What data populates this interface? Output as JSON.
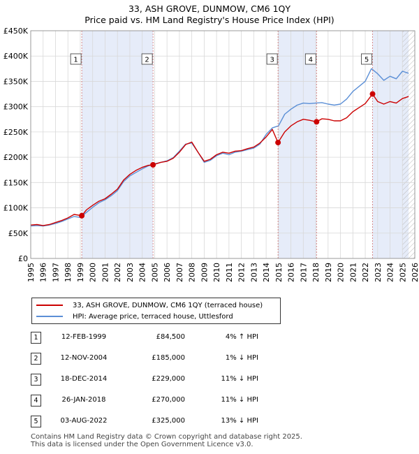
{
  "header": {
    "title": "33, ASH GROVE, DUNMOW, CM6 1QY",
    "subtitle": "Price paid vs. HM Land Registry's House Price Index (HPI)"
  },
  "legend": {
    "property_label": "33, ASH GROVE, DUNMOW, CM6 1QY (terraced house)",
    "hpi_label": "HPI: Average price, terraced house, Uttlesford",
    "property_color": "#cc0000",
    "hpi_color": "#5b8fd6"
  },
  "transactions": [
    {
      "num": "1",
      "date": "12-FEB-1999",
      "price": "£84,500",
      "hpi": "4% ↑ HPI"
    },
    {
      "num": "2",
      "date": "12-NOV-2004",
      "price": "£185,000",
      "hpi": "1% ↓ HPI"
    },
    {
      "num": "3",
      "date": "18-DEC-2014",
      "price": "£229,000",
      "hpi": "11% ↓ HPI"
    },
    {
      "num": "4",
      "date": "26-JAN-2018",
      "price": "£270,000",
      "hpi": "11% ↓ HPI"
    },
    {
      "num": "5",
      "date": "03-AUG-2022",
      "price": "£325,000",
      "hpi": "13% ↓ HPI"
    }
  ],
  "footer": {
    "line1": "Contains HM Land Registry data © Crown copyright and database right 2025.",
    "line2": "This data is licensed under the Open Government Licence v3.0."
  },
  "chart_data": {
    "type": "line",
    "title": "33, ASH GROVE, DUNMOW, CM6 1QY",
    "subtitle": "Price paid vs. HM Land Registry's House Price Index (HPI)",
    "xlim": [
      1995,
      2026
    ],
    "ylim": [
      0,
      450000
    ],
    "x_ticks": [
      1995,
      1996,
      1997,
      1998,
      1999,
      2000,
      2001,
      2002,
      2003,
      2004,
      2005,
      2006,
      2007,
      2008,
      2009,
      2010,
      2011,
      2012,
      2013,
      2014,
      2015,
      2016,
      2017,
      2018,
      2019,
      2020,
      2021,
      2022,
      2023,
      2024,
      2025,
      2026
    ],
    "y_ticks": [
      0,
      50000,
      100000,
      150000,
      200000,
      250000,
      300000,
      350000,
      400000,
      450000
    ],
    "y_tick_labels": [
      "£0",
      "£50K",
      "£100K",
      "£150K",
      "£200K",
      "£250K",
      "£300K",
      "£350K",
      "£400K",
      "£450K"
    ],
    "grid": true,
    "shaded_periods": [
      [
        1999.12,
        2004.87
      ],
      [
        2014.96,
        2018.07
      ],
      [
        2022.59,
        2025.5
      ]
    ],
    "hatched_from": 2025.0,
    "series": [
      {
        "name": "33, ASH GROVE, DUNMOW, CM6 1QY (terraced house)",
        "color": "#cc0000",
        "x": [
          1995,
          1995.5,
          1996,
          1996.5,
          1997,
          1997.5,
          1998,
          1998.5,
          1999.12,
          1999.5,
          2000,
          2000.5,
          2001,
          2001.5,
          2002,
          2002.5,
          2003,
          2003.5,
          2004,
          2004.5,
          2004.87,
          2005.5,
          2006,
          2006.5,
          2007,
          2007.5,
          2008,
          2008.5,
          2009,
          2009.5,
          2010,
          2010.5,
          2011,
          2011.5,
          2012,
          2012.5,
          2013,
          2013.5,
          2014,
          2014.5,
          2014.96,
          2015.5,
          2016,
          2016.5,
          2017,
          2017.5,
          2018.07,
          2018.5,
          2019,
          2019.5,
          2020,
          2020.5,
          2021,
          2021.5,
          2022,
          2022.59,
          2023,
          2023.5,
          2024,
          2024.5,
          2025,
          2025.5
        ],
        "y": [
          66000,
          67000,
          65000,
          67000,
          71000,
          75000,
          80000,
          87000,
          84500,
          96000,
          105000,
          113000,
          118000,
          127000,
          137000,
          155000,
          166000,
          174000,
          180000,
          184000,
          185000,
          190000,
          192000,
          198000,
          210000,
          225000,
          230000,
          210000,
          192000,
          196000,
          205000,
          210000,
          208000,
          212000,
          213000,
          217000,
          220000,
          228000,
          240000,
          255000,
          229000,
          250000,
          262000,
          270000,
          275000,
          273000,
          270000,
          276000,
          275000,
          272000,
          272000,
          278000,
          290000,
          298000,
          306000,
          325000,
          310000,
          305000,
          310000,
          307000,
          316000,
          320000
        ]
      },
      {
        "name": "HPI: Average price, terraced house, Uttlesford",
        "color": "#5b8fd6",
        "x": [
          1995,
          1995.5,
          1996,
          1996.5,
          1997,
          1997.5,
          1998,
          1998.5,
          1999,
          1999.5,
          2000,
          2000.5,
          2001,
          2001.5,
          2002,
          2002.5,
          2003,
          2003.5,
          2004,
          2004.5,
          2005,
          2005.5,
          2006,
          2006.5,
          2007,
          2007.5,
          2008,
          2008.5,
          2009,
          2009.5,
          2010,
          2010.5,
          2011,
          2011.5,
          2012,
          2012.5,
          2013,
          2013.5,
          2014,
          2014.5,
          2015,
          2015.5,
          2016,
          2016.5,
          2017,
          2017.5,
          2018,
          2018.5,
          2019,
          2019.5,
          2020,
          2020.5,
          2021,
          2021.5,
          2022,
          2022.5,
          2023,
          2023.5,
          2024,
          2024.5,
          2025,
          2025.5
        ],
        "y": [
          64000,
          65000,
          64000,
          66000,
          69000,
          73000,
          78000,
          83000,
          81000,
          91000,
          101000,
          110000,
          116000,
          124000,
          134000,
          152000,
          163000,
          170000,
          177000,
          183000,
          187000,
          190000,
          193000,
          199000,
          212000,
          226000,
          228000,
          210000,
          190000,
          194000,
          203000,
          208000,
          205000,
          210000,
          212000,
          215000,
          218000,
          226000,
          245000,
          258000,
          262000,
          285000,
          295000,
          303000,
          307000,
          306000,
          307000,
          308000,
          305000,
          303000,
          305000,
          315000,
          330000,
          340000,
          350000,
          375000,
          365000,
          352000,
          360000,
          355000,
          370000,
          366000
        ]
      }
    ],
    "markers": [
      {
        "label": "1",
        "x": 1999.12,
        "y": 84500
      },
      {
        "label": "2",
        "x": 2004.87,
        "y": 185000
      },
      {
        "label": "3",
        "x": 2014.96,
        "y": 229000
      },
      {
        "label": "4",
        "x": 2018.07,
        "y": 270000
      },
      {
        "label": "5",
        "x": 2022.59,
        "y": 325000
      }
    ]
  }
}
